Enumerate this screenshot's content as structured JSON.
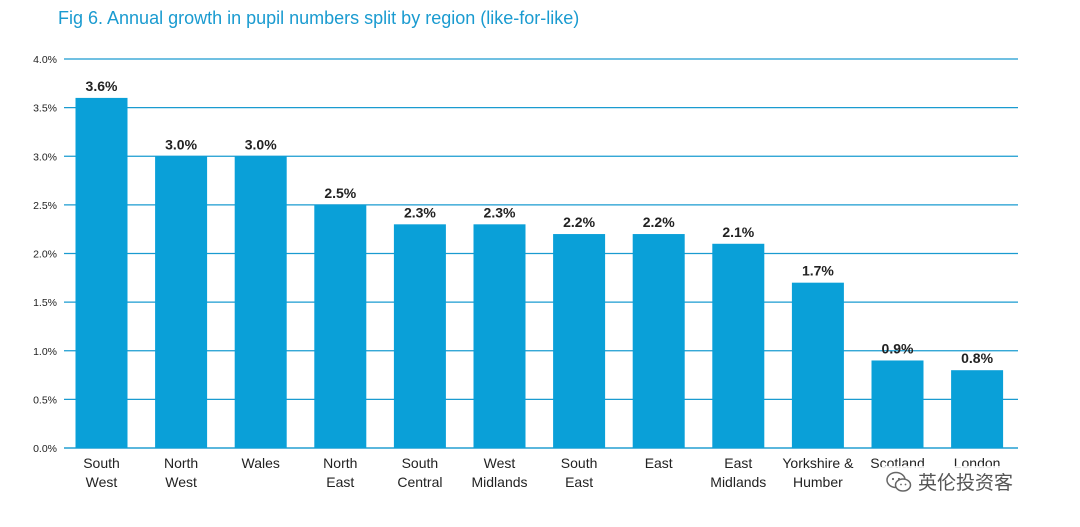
{
  "chart_data": {
    "type": "bar",
    "title": "Fig 6. Annual growth in pupil numbers split by region (like-for-like)",
    "categories": [
      [
        "South",
        "West"
      ],
      [
        "North",
        "West"
      ],
      [
        "Wales"
      ],
      [
        "North",
        "East"
      ],
      [
        "South",
        "Central"
      ],
      [
        "West",
        "Midlands"
      ],
      [
        "South",
        "East"
      ],
      [
        "East"
      ],
      [
        "East",
        "Midlands"
      ],
      [
        "Yorkshire &",
        "Humber"
      ],
      [
        "Scotland"
      ],
      [
        "London"
      ]
    ],
    "values": [
      3.6,
      3.0,
      3.0,
      2.5,
      2.3,
      2.3,
      2.2,
      2.2,
      2.1,
      1.7,
      0.9,
      0.8
    ],
    "value_labels": [
      "3.6%",
      "3.0%",
      "3.0%",
      "2.5%",
      "2.3%",
      "2.3%",
      "2.2%",
      "2.2%",
      "2.1%",
      "1.7%",
      "0.9%",
      "0.8%"
    ],
    "yticks": [
      "0.0%",
      "0.5%",
      "1.0%",
      "1.5%",
      "2.0%",
      "2.5%",
      "3.0%",
      "3.5%",
      "4.0%"
    ],
    "ylim": [
      0,
      4.0
    ],
    "grid": true,
    "colors": {
      "bar": "#0aa0d8",
      "grid": "#1a9bd0",
      "title": "#1a9bd0",
      "text": "#222222"
    }
  },
  "watermark": {
    "text": "英伦投资客",
    "icon": "wechat-icon"
  }
}
